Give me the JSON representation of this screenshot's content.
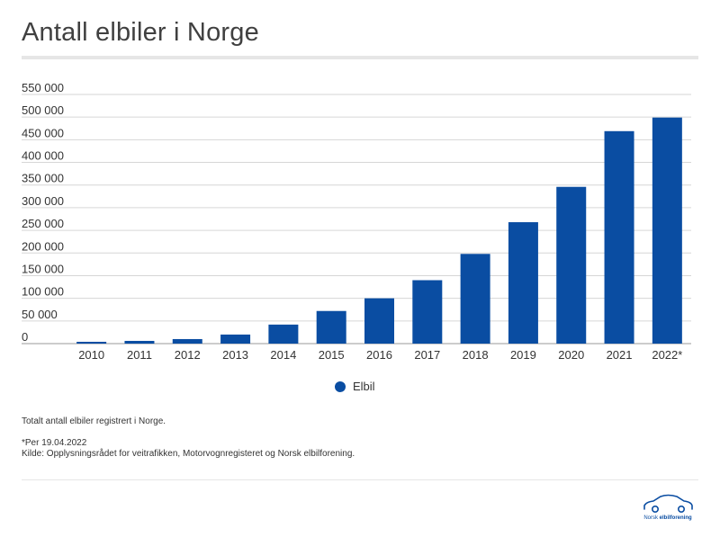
{
  "title": "Antall elbiler i Norge",
  "chart_data": {
    "type": "bar",
    "categories": [
      "2010",
      "2011",
      "2012",
      "2013",
      "2014",
      "2015",
      "2016",
      "2017",
      "2018",
      "2019",
      "2020",
      "2021",
      "2022*"
    ],
    "series": [
      {
        "name": "Elbil",
        "values": [
          4000,
          6000,
          10000,
          20000,
          42000,
          72000,
          100000,
          140000,
          198000,
          268000,
          346000,
          469000,
          499000
        ]
      }
    ],
    "ylim": [
      0,
      550000
    ],
    "yticks": [
      0,
      50000,
      100000,
      150000,
      200000,
      250000,
      300000,
      350000,
      400000,
      450000,
      500000,
      550000
    ],
    "ytick_labels": [
      "0",
      "50 000",
      "100 000",
      "150 000",
      "200 000",
      "250 000",
      "300 000",
      "350 000",
      "400 000",
      "450 000",
      "500 000",
      "550 000"
    ],
    "grid": true,
    "legend_position": "bottom-center",
    "bar_color": "#0a4da2"
  },
  "legend": {
    "label": "Elbil"
  },
  "notes": {
    "description": "Totalt antall elbiler registrert i Norge.",
    "asterisk": "*Per 19.04.2022",
    "source": "Kilde: Opplysningsrådet for veitrafikken, Motorvognregisteret og Norsk elbilforening."
  },
  "logo": {
    "text_prefix": "Norsk ",
    "text_bold": "elbilforening"
  }
}
